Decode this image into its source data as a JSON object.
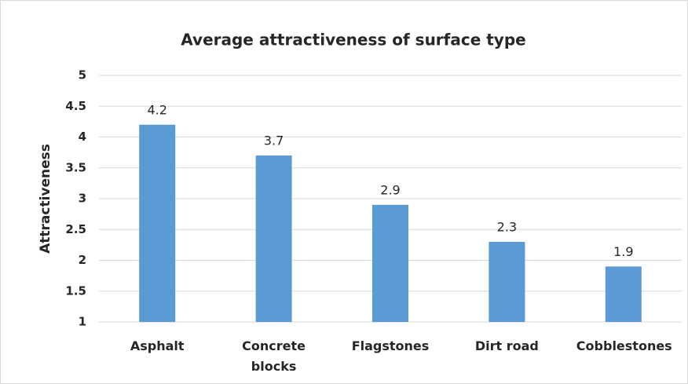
{
  "chart_data": {
    "type": "bar",
    "title": "Average attractiveness of surface type",
    "y_label": "Attractiveness",
    "categories": [
      "Asphalt",
      "Concrete blocks",
      "Flagstones",
      "Dirt road",
      "Cobblestones"
    ],
    "values": [
      4.2,
      3.7,
      2.9,
      2.3,
      1.9
    ],
    "color": "#5b9bd5",
    "ylim": [
      1,
      5
    ],
    "yticks": [
      1,
      1.5,
      2,
      2.5,
      3,
      3.5,
      4,
      4.5,
      5
    ],
    "grid": true
  }
}
